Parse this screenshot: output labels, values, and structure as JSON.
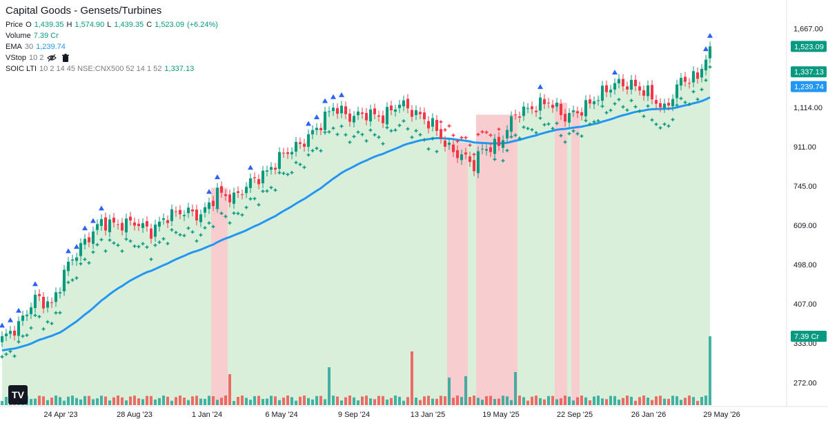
{
  "header": {
    "title": "Capital Goods - Gensets/Turbines",
    "price_label": "Price",
    "o_label": "O",
    "o_value": "1,439.35",
    "h_label": "H",
    "h_value": "1,574.90",
    "l_label": "L",
    "l_value": "1,439.35",
    "c_label": "C",
    "c_value": "1,523.09",
    "change": "(+6.24%)",
    "volume_label": "Volume",
    "volume_value": "7.39 Cr",
    "ema_label": "EMA",
    "ema_param": "30",
    "ema_value": "1,239.74",
    "vstop_label": "VStop",
    "vstop_params": "10 2",
    "soic_label": "SOIC LTI",
    "soic_params": "10 2 14 45 NSE:CNX500 52 14 1 52",
    "soic_value": "1,337.13",
    "logo_text": "TV"
  },
  "colors": {
    "up": "#089981",
    "down": "#f23645",
    "ema": "#2196f3",
    "vstop": "#089981",
    "fill": "#d4ecd4",
    "pink": "#f8cdd0",
    "arrow": "#2962ff"
  },
  "chart_data": {
    "type": "candlestick",
    "y_scale": "log",
    "ylim": [
      245,
      1800
    ],
    "y_ticks": [
      "1,667.00",
      "1,114.00",
      "911.00",
      "745.00",
      "609.00",
      "498.00",
      "407.00",
      "333.00",
      "272.00"
    ],
    "x_ticks": [
      "24 Apr '23",
      "28 Aug '23",
      "1 Jan '24",
      "6 May '24",
      "9 Sep '24",
      "13 Jan '25",
      "19 May '25",
      "22 Sep '25",
      "26 Jan '26",
      "29 May '26"
    ],
    "price_labels": [
      {
        "text": "1,523.09",
        "value": 1523.09,
        "color": "#089981"
      },
      {
        "text": "1,337.13",
        "value": 1337.13,
        "color": "#089981"
      },
      {
        "text": "1,239.74",
        "value": 1239.74,
        "color": "#2196f3"
      },
      {
        "text": "7.39 Cr",
        "value": 345,
        "color": "#089981"
      }
    ],
    "close_keypoints": [
      [
        0,
        340
      ],
      [
        4,
        365
      ],
      [
        8,
        420
      ],
      [
        12,
        405
      ],
      [
        16,
        500
      ],
      [
        20,
        560
      ],
      [
        24,
        620
      ],
      [
        28,
        610
      ],
      [
        32,
        620
      ],
      [
        36,
        590
      ],
      [
        40,
        640
      ],
      [
        44,
        655
      ],
      [
        48,
        640
      ],
      [
        52,
        720
      ],
      [
        56,
        700
      ],
      [
        60,
        760
      ],
      [
        64,
        800
      ],
      [
        68,
        880
      ],
      [
        72,
        920
      ],
      [
        76,
        1000
      ],
      [
        80,
        1120
      ],
      [
        84,
        1060
      ],
      [
        88,
        1080
      ],
      [
        92,
        1060
      ],
      [
        96,
        1140
      ],
      [
        100,
        1080
      ],
      [
        104,
        1020
      ],
      [
        108,
        900
      ],
      [
        112,
        860
      ],
      [
        114,
        830
      ],
      [
        116,
        900
      ],
      [
        120,
        920
      ],
      [
        124,
        1080
      ],
      [
        128,
        1110
      ],
      [
        132,
        1150
      ],
      [
        136,
        1060
      ],
      [
        140,
        1100
      ],
      [
        144,
        1180
      ],
      [
        148,
        1260
      ],
      [
        152,
        1250
      ],
      [
        156,
        1200
      ],
      [
        160,
        1100
      ],
      [
        164,
        1280
      ],
      [
        168,
        1300
      ],
      [
        171,
        1523
      ]
    ],
    "volume_spikes": [
      {
        "index": 55,
        "value": 0.45
      },
      {
        "index": 79,
        "value": 0.55
      },
      {
        "index": 99,
        "value": 0.78
      },
      {
        "index": 108,
        "value": 0.4
      },
      {
        "index": 112,
        "value": 0.42
      },
      {
        "index": 124,
        "value": 0.48
      },
      {
        "index": 171,
        "value": 1.0
      }
    ],
    "pink_bands": [
      [
        51,
        54
      ],
      [
        108,
        112
      ],
      [
        115,
        124
      ],
      [
        134,
        136
      ],
      [
        138,
        139
      ]
    ]
  }
}
